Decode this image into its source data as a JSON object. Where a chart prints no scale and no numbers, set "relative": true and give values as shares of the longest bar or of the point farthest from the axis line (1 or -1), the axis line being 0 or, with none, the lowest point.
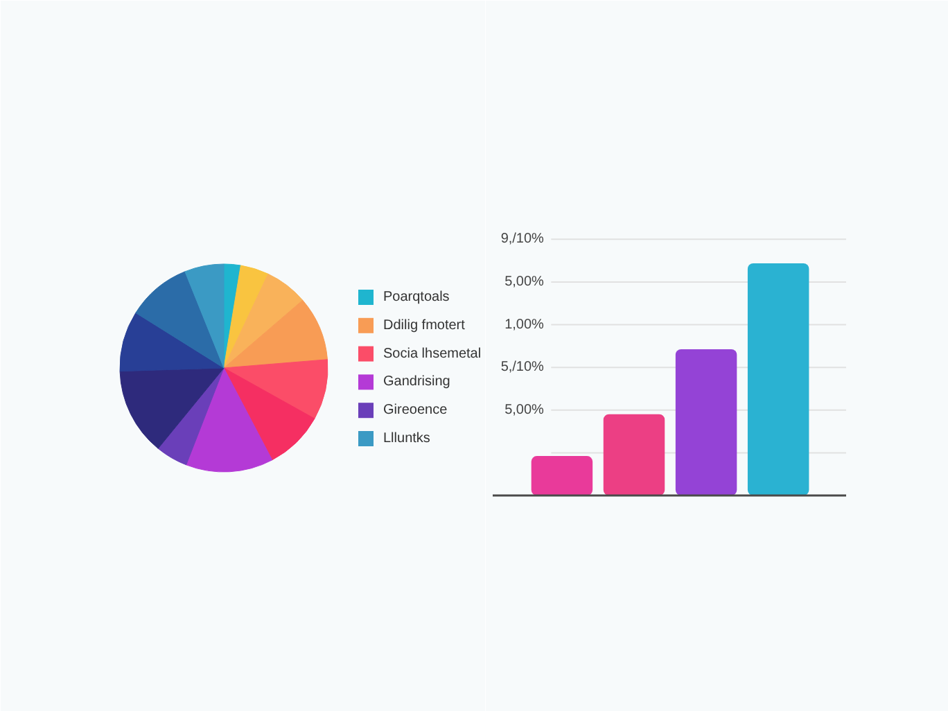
{
  "chart_data": [
    {
      "type": "pie",
      "categories": [
        "Poarqtoals",
        null,
        null,
        "Ddilig fmotert",
        "Socia lhsemetal",
        null,
        "Gandrising",
        "Gireoence",
        null,
        null,
        null,
        "Llluntks"
      ],
      "values": [
        2.6,
        4.4,
        6.7,
        10,
        9.4,
        9.2,
        13.6,
        5,
        13.6,
        9.4,
        10,
        6.1
      ],
      "colors": [
        "#1fb5cf",
        "#f9c440",
        "#f9b25a",
        "#f89c55",
        "#fb4d68",
        "#f52f62",
        "#b43ad6",
        "#6a3fb9",
        "#2e2a7c",
        "#283f96",
        "#2b6ca8",
        "#3b9ac4"
      ],
      "legend": "right"
    },
    {
      "type": "bar",
      "categories": [
        null,
        null,
        null,
        null
      ],
      "values": [
        0.17,
        0.35,
        0.63,
        1
      ],
      "relative": true,
      "colors": [
        "#e93a9a",
        "#ec3f84",
        "#9443d6",
        "#2ab2d2"
      ],
      "annotations": [
        "9,/10%",
        "5,00%",
        "1,00%",
        "5,/10%",
        "5,00%"
      ],
      "grid": "y"
    }
  ]
}
